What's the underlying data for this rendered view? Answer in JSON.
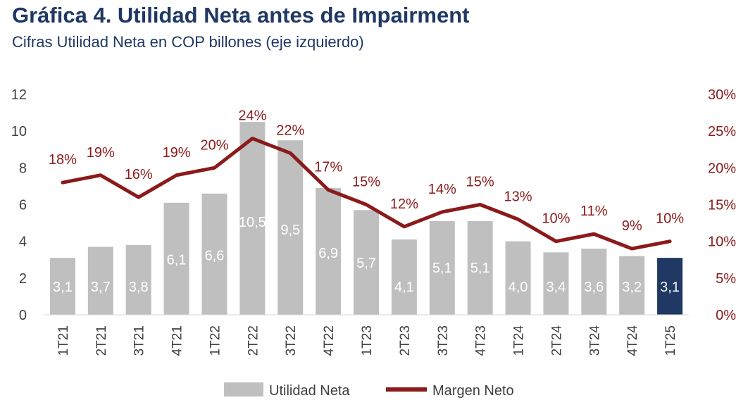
{
  "title": "Gráfica 4. Utilidad Neta antes de Impairment",
  "subtitle": "Cifras Utilidad Neta en COP billones (eje izquierdo)",
  "colors": {
    "bar": "#bfbfbf",
    "bar_highlight": "#1f3864",
    "line": "#8b1a1a",
    "title": "#1f3864"
  },
  "chart_data": {
    "type": "bar",
    "categories": [
      "1T21",
      "2T21",
      "3T21",
      "4T21",
      "1T22",
      "2T22",
      "3T22",
      "4T22",
      "1T23",
      "2T23",
      "3T23",
      "4T23",
      "1T24",
      "2T24",
      "3T24",
      "4T24",
      "1T25"
    ],
    "series": [
      {
        "name": "Utilidad Neta",
        "type": "bar",
        "axis": "left",
        "values": [
          3.1,
          3.7,
          3.8,
          6.1,
          6.6,
          10.5,
          9.5,
          6.9,
          5.7,
          4.1,
          5.1,
          5.1,
          4.0,
          3.4,
          3.6,
          3.2,
          3.1
        ],
        "labels": [
          "3,1",
          "3,7",
          "3,8",
          "6,1",
          "6,6",
          "10,5",
          "9,5",
          "6,9",
          "5,7",
          "4,1",
          "5,1",
          "5,1",
          "4,0",
          "3,4",
          "3,6",
          "3,2",
          "3,1"
        ],
        "highlight_index": 16
      },
      {
        "name": "Margen Neto",
        "type": "line",
        "axis": "right",
        "values": [
          18,
          19,
          16,
          19,
          20,
          24,
          22,
          17,
          15,
          12,
          14,
          15,
          13,
          10,
          11,
          9,
          10
        ],
        "labels": [
          "18%",
          "19%",
          "16%",
          "19%",
          "20%",
          "24%",
          "22%",
          "17%",
          "15%",
          "12%",
          "14%",
          "15%",
          "13%",
          "10%",
          "11%",
          "9%",
          "10%"
        ]
      }
    ],
    "left_axis": {
      "ylim": [
        0,
        12
      ],
      "ticks": [
        "0",
        "2",
        "4",
        "6",
        "8",
        "10",
        "12"
      ]
    },
    "right_axis": {
      "ylim": [
        0,
        30
      ],
      "ticks": [
        "0%",
        "5%",
        "10%",
        "15%",
        "20%",
        "25%",
        "30%"
      ]
    },
    "legend": {
      "placement": "bottom",
      "entries": [
        "Utilidad Neta",
        "Margen Neto"
      ]
    },
    "grid": false
  }
}
